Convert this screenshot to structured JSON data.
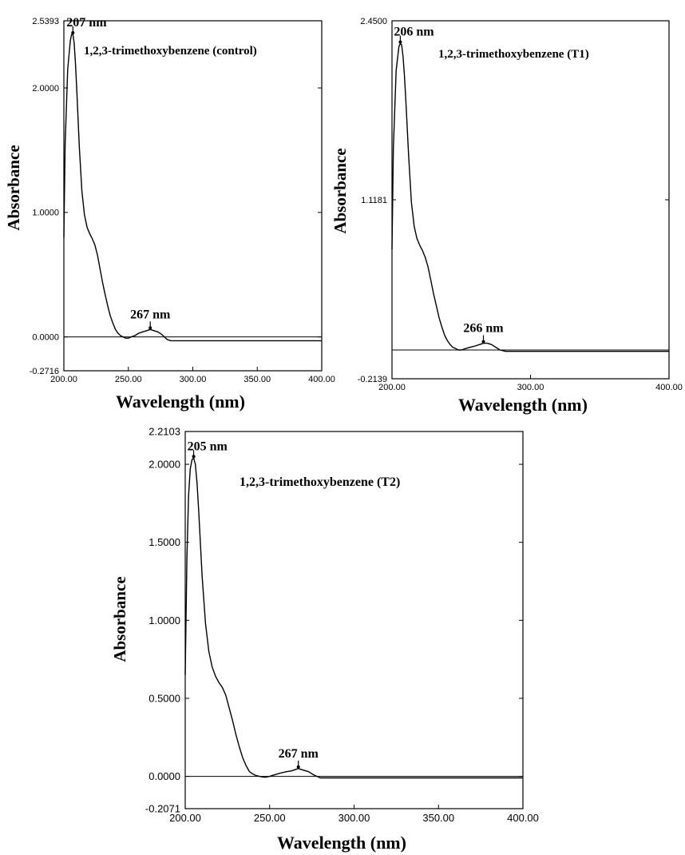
{
  "chart_data": [
    {
      "type": "line",
      "title": "1,2,3-trimethoxybenzene (control)",
      "xlabel": "Wavelength (nm)",
      "ylabel": "Absorbance",
      "xlim": [
        200,
        400
      ],
      "ylim": [
        -0.2716,
        2.5393
      ],
      "x_ticks": [
        "200.00",
        "250.00",
        "300.00",
        "350.00",
        "400.00"
      ],
      "y_ticks": [
        "-0.2716",
        "0.0000",
        "1.0000",
        "2.0000",
        "2.5393"
      ],
      "peaks": [
        {
          "x": 207,
          "y": 2.43,
          "label": "207 nm"
        },
        {
          "x": 267,
          "y": 0.06,
          "label": "267 nm"
        }
      ],
      "grid": false,
      "series": [
        {
          "x": [
            200,
            201,
            203,
            205,
            206,
            207,
            208,
            209,
            210,
            212,
            214,
            216,
            218,
            220,
            222,
            224,
            226,
            228,
            230,
            232,
            234,
            236,
            238,
            240,
            242,
            244,
            246,
            248,
            250,
            252,
            255,
            258,
            261,
            264,
            267,
            270,
            273,
            276,
            278,
            280,
            283,
            286,
            290,
            300,
            320,
            350,
            380,
            400
          ],
          "y": [
            0.8,
            1.55,
            2.15,
            2.38,
            2.43,
            2.43,
            2.36,
            2.2,
            1.98,
            1.52,
            1.17,
            0.98,
            0.88,
            0.83,
            0.79,
            0.74,
            0.66,
            0.55,
            0.44,
            0.34,
            0.25,
            0.17,
            0.11,
            0.06,
            0.03,
            0.01,
            0.0,
            -0.01,
            -0.01,
            0.0,
            0.01,
            0.03,
            0.04,
            0.05,
            0.06,
            0.05,
            0.04,
            0.02,
            0.0,
            -0.02,
            -0.03,
            -0.03,
            -0.03,
            -0.03,
            -0.03,
            -0.03,
            -0.03,
            -0.03
          ]
        }
      ]
    },
    {
      "type": "line",
      "title": "1,2,3-trimethoxybenzene (T1)",
      "xlabel": "Wavelength (nm)",
      "ylabel": "Absorbance",
      "xlim": [
        200,
        400
      ],
      "ylim": [
        -0.2139,
        2.45
      ],
      "x_ticks": [
        "200.00",
        "300.00",
        "400.00"
      ],
      "y_ticks": [
        "-0.2139",
        "1.1181",
        "2.4500"
      ],
      "peaks": [
        {
          "x": 206,
          "y": 2.28,
          "label": "206 nm"
        },
        {
          "x": 266,
          "y": 0.05,
          "label": "266 nm"
        }
      ],
      "grid": false,
      "series": [
        {
          "x": [
            200,
            201,
            203,
            205,
            206,
            207,
            208,
            209,
            210,
            212,
            214,
            216,
            218,
            220,
            222,
            224,
            226,
            228,
            230,
            232,
            234,
            236,
            238,
            240,
            242,
            244,
            246,
            248,
            250,
            253,
            256,
            260,
            263,
            266,
            269,
            272,
            275,
            278,
            282,
            290,
            300,
            400
          ],
          "y": [
            0.75,
            1.5,
            2.08,
            2.26,
            2.28,
            2.27,
            2.18,
            2.04,
            1.85,
            1.45,
            1.1,
            0.92,
            0.83,
            0.78,
            0.74,
            0.69,
            0.62,
            0.52,
            0.42,
            0.33,
            0.24,
            0.17,
            0.11,
            0.07,
            0.04,
            0.02,
            0.01,
            0.0,
            0.0,
            0.01,
            0.02,
            0.03,
            0.04,
            0.05,
            0.05,
            0.04,
            0.02,
            0.0,
            -0.01,
            -0.01,
            -0.01,
            -0.01
          ]
        }
      ]
    },
    {
      "type": "line",
      "title": "1,2,3-trimethoxybenzene (T2)",
      "xlabel": "Wavelength (nm)",
      "ylabel": "Absorbance",
      "xlim": [
        200,
        400
      ],
      "ylim": [
        -0.2071,
        2.2103
      ],
      "x_ticks": [
        "200.00",
        "250.00",
        "300.00",
        "350.00",
        "400.00"
      ],
      "y_ticks": [
        "-0.2071",
        "0.0000",
        "0.5000",
        "1.0000",
        "1.5000",
        "2.0000",
        "2.2103"
      ],
      "peaks": [
        {
          "x": 205,
          "y": 2.04,
          "label": "205 nm"
        },
        {
          "x": 267,
          "y": 0.05,
          "label": "267 nm"
        }
      ],
      "grid": false,
      "series": [
        {
          "x": [
            200,
            201,
            202,
            203,
            204,
            205,
            206,
            207,
            208,
            210,
            212,
            214,
            216,
            218,
            220,
            222,
            224,
            226,
            228,
            230,
            232,
            234,
            236,
            238,
            240,
            242,
            244,
            246,
            248,
            250,
            253,
            256,
            260,
            263,
            267,
            270,
            273,
            276,
            280,
            283,
            288,
            300,
            320,
            350,
            380,
            400
          ],
          "y": [
            0.65,
            1.4,
            1.8,
            1.97,
            2.03,
            2.04,
            2.0,
            1.88,
            1.7,
            1.28,
            0.98,
            0.8,
            0.7,
            0.64,
            0.6,
            0.57,
            0.52,
            0.44,
            0.36,
            0.27,
            0.19,
            0.12,
            0.07,
            0.03,
            0.015,
            0.005,
            0.0,
            -0.005,
            -0.005,
            0.0,
            0.01,
            0.02,
            0.03,
            0.035,
            0.05,
            0.04,
            0.03,
            0.01,
            -0.01,
            -0.01,
            -0.01,
            -0.01,
            -0.01,
            -0.01,
            -0.01,
            -0.01
          ]
        }
      ]
    }
  ]
}
